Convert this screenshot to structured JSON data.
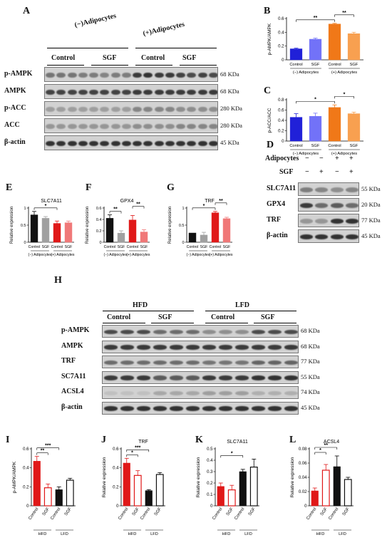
{
  "panels": {
    "A": {
      "label": "A",
      "groups": [
        "(−)Adipocytes",
        "(+)Adipocytes"
      ],
      "conditions": [
        "Control",
        "SGF",
        "Control",
        "SGF"
      ],
      "proteins": [
        {
          "name": "p-AMPK",
          "kda": "68 KDa",
          "intensities": [
            0.55,
            0.55,
            0.55,
            0.5,
            0.5,
            0.45,
            0.5,
            0.5,
            0.9,
            0.95,
            0.9,
            0.9,
            0.85,
            0.8,
            0.85,
            0.8
          ]
        },
        {
          "name": "AMPK",
          "kda": "68 KDa",
          "intensities": [
            0.85,
            0.85,
            0.85,
            0.85,
            0.85,
            0.85,
            0.85,
            0.85,
            0.9,
            0.9,
            0.9,
            0.9,
            0.9,
            0.9,
            0.9,
            0.9
          ]
        },
        {
          "name": "p-ACC",
          "kda": "280 KDa",
          "intensities": [
            0.3,
            0.3,
            0.3,
            0.3,
            0.3,
            0.3,
            0.3,
            0.3,
            0.45,
            0.45,
            0.45,
            0.45,
            0.4,
            0.4,
            0.4,
            0.4
          ]
        },
        {
          "name": "ACC",
          "kda": "280 KDa",
          "intensities": [
            0.35,
            0.35,
            0.35,
            0.35,
            0.35,
            0.35,
            0.35,
            0.35,
            0.4,
            0.4,
            0.4,
            0.4,
            0.45,
            0.45,
            0.45,
            0.45
          ]
        },
        {
          "name": "β-actin",
          "kda": "45 KDa",
          "intensities": [
            0.95,
            0.95,
            0.95,
            0.95,
            0.95,
            0.95,
            0.95,
            0.95,
            0.95,
            0.95,
            0.95,
            0.95,
            0.95,
            0.95,
            0.95,
            0.95
          ]
        }
      ]
    },
    "D": {
      "label": "D",
      "header_rows": [
        {
          "name": "Adipocytes",
          "marks": [
            "−",
            "−",
            "+",
            "+"
          ]
        },
        {
          "name": "SGF",
          "marks": [
            "−",
            "+",
            "−",
            "+"
          ]
        }
      ],
      "proteins": [
        {
          "name": "SLC7A11",
          "kda": "55 KDa",
          "intensities": [
            0.5,
            0.45,
            0.4,
            0.45
          ]
        },
        {
          "name": "GPX4",
          "kda": "20 KDa",
          "intensities": [
            0.9,
            0.6,
            0.7,
            0.6
          ]
        },
        {
          "name": "TRF",
          "kda": "77 KDa",
          "intensities": [
            0.35,
            0.35,
            0.95,
            0.95
          ]
        },
        {
          "name": "β-actin",
          "kda": "45 KDa",
          "intensities": [
            0.95,
            0.95,
            0.95,
            0.95
          ]
        }
      ]
    },
    "H": {
      "label": "H",
      "groups": [
        "HFD",
        "LFD"
      ],
      "conditions": [
        "Control",
        "SGF",
        "Control",
        "SGF"
      ],
      "proteins": [
        {
          "name": "p-AMPK",
          "kda": "68 KDa",
          "intensities": [
            0.8,
            0.8,
            0.8,
            0.6,
            0.6,
            0.6,
            0.4,
            0.4,
            0.4,
            0.8,
            0.8,
            0.8
          ]
        },
        {
          "name": "AMPK",
          "kda": "68 KDa",
          "intensities": [
            0.9,
            0.9,
            0.9,
            0.9,
            0.9,
            0.9,
            0.9,
            0.9,
            0.9,
            0.9,
            0.9,
            0.9
          ]
        },
        {
          "name": "TRF",
          "kda": "77 KDa",
          "intensities": [
            0.6,
            0.6,
            0.6,
            0.6,
            0.6,
            0.6,
            0.55,
            0.55,
            0.55,
            0.65,
            0.65,
            0.65
          ]
        },
        {
          "name": "SC7A11",
          "kda": "55 KDa",
          "intensities": [
            0.9,
            0.9,
            0.9,
            0.7,
            0.7,
            0.7,
            0.9,
            0.9,
            0.9,
            0.95,
            0.95,
            0.95
          ]
        },
        {
          "name": "ACSL4",
          "kda": "74 KDa",
          "intensities": [
            0.1,
            0.1,
            0.1,
            0.25,
            0.25,
            0.25,
            0.3,
            0.3,
            0.3,
            0.2,
            0.2,
            0.2
          ]
        },
        {
          "name": "β-actin",
          "kda": "45 KDa",
          "intensities": [
            0.95,
            0.95,
            0.95,
            0.95,
            0.95,
            0.95,
            0.95,
            0.95,
            0.95,
            0.95,
            0.95,
            0.95
          ]
        }
      ]
    }
  },
  "chart_data": [
    {
      "id": "B",
      "type": "bar",
      "ylabel": "p-AMPK/AMPK",
      "ylim": [
        0,
        0.6
      ],
      "yticks": [
        0,
        0.2,
        0.4,
        0.6
      ],
      "categories": [
        "Control",
        "SGF",
        "Control",
        "SGF"
      ],
      "values": [
        0.16,
        0.3,
        0.52,
        0.38
      ],
      "errors": [
        0.01,
        0.015,
        0.01,
        0.02
      ],
      "colors": [
        "#2020d8",
        "#7272f8",
        "#f07818",
        "#f8a050"
      ],
      "fill": "solid",
      "groups": [
        "(−) Adipocytes",
        "(+) Adipocytes"
      ],
      "sig": [
        {
          "from": 0,
          "to": 2,
          "label": "**"
        },
        {
          "from": 2,
          "to": 3,
          "label": "**"
        }
      ]
    },
    {
      "id": "C",
      "type": "bar",
      "ylabel": "p-ACC/ACC",
      "ylim": [
        0,
        0.8
      ],
      "yticks": [
        0,
        0.2,
        0.4,
        0.6,
        0.8
      ],
      "categories": [
        "Control",
        "SGF",
        "Control",
        "SGF"
      ],
      "values": [
        0.46,
        0.48,
        0.65,
        0.53
      ],
      "errors": [
        0.07,
        0.06,
        0.05,
        0.03
      ],
      "colors": [
        "#2020d8",
        "#7272f8",
        "#f07818",
        "#f8a050"
      ],
      "fill": "solid",
      "groups": [
        "(−) Adipocytes",
        "(+) Adipocytes"
      ],
      "sig": [
        {
          "from": 0,
          "to": 2,
          "label": "*"
        },
        {
          "from": 2,
          "to": 3,
          "label": "*"
        }
      ]
    },
    {
      "id": "E",
      "title": "SLC7A11",
      "type": "bar",
      "ylabel": "Relative expression",
      "ylim": [
        0,
        1.0
      ],
      "yticks": [
        0,
        0.5,
        1.0
      ],
      "categories": [
        "Control",
        "SGF",
        "Control",
        "SGF"
      ],
      "values": [
        0.8,
        0.7,
        0.55,
        0.57
      ],
      "errors": [
        0.1,
        0.05,
        0.07,
        0.05
      ],
      "colors": [
        "#111111",
        "#a0a0a0",
        "#e01818",
        "#f07878"
      ],
      "fill": "solid",
      "groups": [
        "(−) Adipocytes",
        "(+) Adipocytes"
      ],
      "sig": [
        {
          "from": 0,
          "to": 2,
          "label": "*"
        }
      ]
    },
    {
      "id": "F",
      "title": "GPX4",
      "type": "bar",
      "ylabel": "Relative expression",
      "ylim": [
        0,
        0.6
      ],
      "yticks": [
        0,
        0.2,
        0.4,
        0.6
      ],
      "categories": [
        "Control",
        "SGF",
        "Control",
        "SGF"
      ],
      "values": [
        0.42,
        0.16,
        0.39,
        0.18
      ],
      "errors": [
        0.06,
        0.04,
        0.08,
        0.04
      ],
      "colors": [
        "#111111",
        "#a0a0a0",
        "#e01818",
        "#f07878"
      ],
      "fill": "solid",
      "groups": [
        "(−) Adipocytes",
        "(+) Adipocytes"
      ],
      "sig": [
        {
          "from": 0,
          "to": 1,
          "label": "**"
        },
        {
          "from": 2,
          "to": 3,
          "label": "**"
        }
      ]
    },
    {
      "id": "G",
      "title": "TRF",
      "type": "bar",
      "ylabel": "Relative expression",
      "ylim": [
        0,
        1.0
      ],
      "yticks": [
        0,
        0.5,
        1.0
      ],
      "categories": [
        "Control",
        "SGF",
        "Control",
        "SGF"
      ],
      "values": [
        0.27,
        0.21,
        0.86,
        0.69
      ],
      "errors": [
        0.0,
        0.08,
        0.04,
        0.04
      ],
      "colors": [
        "#111111",
        "#a0a0a0",
        "#e01818",
        "#f07878"
      ],
      "fill": "solid",
      "groups": [
        "(−) Adipocytes",
        "(+) Adipocytes"
      ],
      "sig": [
        {
          "from": 0,
          "to": 2,
          "label": "*"
        },
        {
          "from": 2,
          "to": 3,
          "label": "**"
        }
      ]
    },
    {
      "id": "I",
      "type": "bar",
      "ylabel": "p-AMPK/AMPK",
      "ylim": [
        0,
        0.6
      ],
      "yticks": [
        0,
        0.2,
        0.4,
        0.6
      ],
      "categories": [
        "Control",
        "SGF",
        "Control",
        "SGF"
      ],
      "values": [
        0.47,
        0.19,
        0.17,
        0.27
      ],
      "errors": [
        0.05,
        0.04,
        0.03,
        0.02
      ],
      "colors": [
        "#e01818",
        "#e01818",
        "#111111",
        "#111111"
      ],
      "fill": "mixed",
      "groups": [
        "HFD",
        "LFD"
      ],
      "sig": [
        {
          "from": 0,
          "to": 1,
          "label": "**"
        },
        {
          "from": 0,
          "to": 2,
          "label": "***"
        }
      ]
    },
    {
      "id": "J",
      "title": "TRF",
      "type": "bar",
      "ylabel": "Relative expression",
      "ylim": [
        0,
        0.6
      ],
      "yticks": [
        0,
        0.2,
        0.4,
        0.6
      ],
      "categories": [
        "Control",
        "SGF",
        "Control",
        "SGF"
      ],
      "values": [
        0.45,
        0.32,
        0.16,
        0.33
      ],
      "errors": [
        0.05,
        0.05,
        0.01,
        0.02
      ],
      "colors": [
        "#e01818",
        "#e01818",
        "#111111",
        "#111111"
      ],
      "fill": "mixed",
      "groups": [
        "HFD",
        "LFD"
      ],
      "sig": [
        {
          "from": 0,
          "to": 1,
          "label": "*"
        },
        {
          "from": 0,
          "to": 2,
          "label": "***"
        }
      ]
    },
    {
      "id": "K",
      "title": "SLC7A11",
      "type": "bar",
      "ylabel": "Relative expression",
      "ylim": [
        0,
        0.5
      ],
      "yticks": [
        0,
        0.1,
        0.2,
        0.3,
        0.4,
        0.5
      ],
      "categories": [
        "Control",
        "SGF",
        "Control",
        "SGF"
      ],
      "values": [
        0.17,
        0.14,
        0.3,
        0.34
      ],
      "errors": [
        0.03,
        0.04,
        0.02,
        0.07
      ],
      "colors": [
        "#e01818",
        "#e01818",
        "#111111",
        "#111111"
      ],
      "fill": "mixed",
      "groups": [
        "HFD",
        "LFD"
      ],
      "sig": [
        {
          "from": 0,
          "to": 2,
          "label": "*"
        }
      ]
    },
    {
      "id": "L",
      "title": "ACSL4",
      "type": "bar",
      "ylabel": "Relative expression",
      "ylim": [
        0,
        0.08
      ],
      "yticks": [
        0,
        0.02,
        0.04,
        0.06,
        0.08
      ],
      "categories": [
        "Control",
        "SGF",
        "Control",
        "SGF"
      ],
      "values": [
        0.021,
        0.05,
        0.055,
        0.037
      ],
      "errors": [
        0.004,
        0.008,
        0.015,
        0.003
      ],
      "colors": [
        "#e01818",
        "#e01818",
        "#111111",
        "#111111"
      ],
      "fill": "mixed",
      "groups": [
        "HFD",
        "LFD"
      ],
      "sig": [
        {
          "from": 0,
          "to": 1,
          "label": "*"
        },
        {
          "from": 0,
          "to": 2,
          "label": "**"
        }
      ]
    }
  ]
}
